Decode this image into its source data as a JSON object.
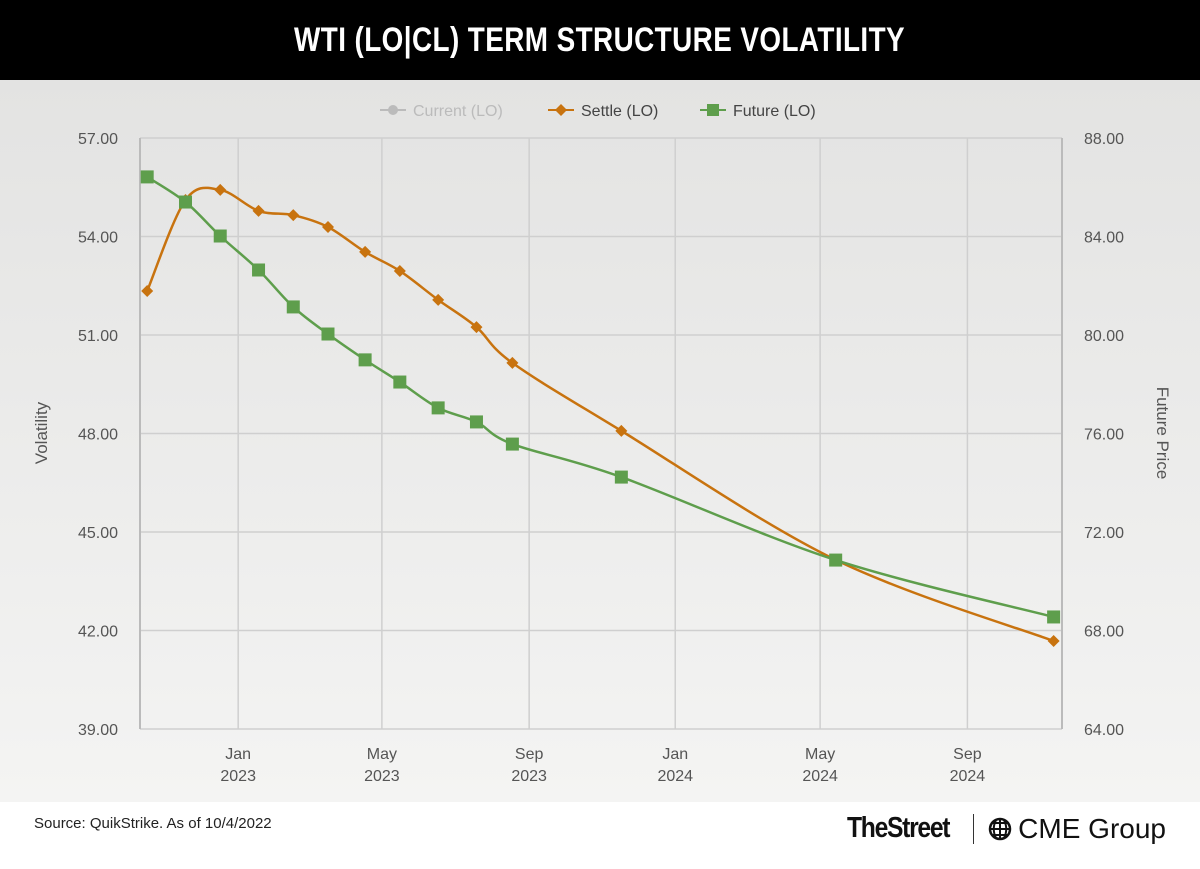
{
  "title": "WTI (LO|CL) TERM STRUCTURE VOLATILITY",
  "footer": {
    "source": "Source: QuikStrike. As of 10/4/2022",
    "logo_thestreet": "TheStreet",
    "logo_cme": "CME Group"
  },
  "chart_data": {
    "type": "line",
    "title": "WTI (LO|CL) TERM STRUCTURE VOLATILITY",
    "ylabel": "Volatility",
    "y2label": "Future Price",
    "ylim": [
      39,
      57
    ],
    "y2lim": [
      64,
      88
    ],
    "yticks": [
      "57.00",
      "54.00",
      "51.00",
      "48.00",
      "45.00",
      "42.00",
      "39.00"
    ],
    "y2ticks": [
      "88.00",
      "84.00",
      "80.00",
      "76.00",
      "72.00",
      "68.00",
      "64.00"
    ],
    "xticks": [
      {
        "date": "2023-01-01",
        "line1": "Jan",
        "line2": "2023"
      },
      {
        "date": "2023-05-01",
        "line1": "May",
        "line2": "2023"
      },
      {
        "date": "2023-09-01",
        "line1": "Sep",
        "line2": "2023"
      },
      {
        "date": "2024-01-01",
        "line1": "Jan",
        "line2": "2024"
      },
      {
        "date": "2024-05-01",
        "line1": "May",
        "line2": "2024"
      },
      {
        "date": "2024-09-01",
        "line1": "Sep",
        "line2": "2024"
      }
    ],
    "xlim": [
      "2022-10-11",
      "2024-11-19"
    ],
    "grid": true,
    "legend_position": "top",
    "legend": [
      {
        "name": "Current (LO)",
        "color": "#bbbbbb",
        "hidden": true,
        "marker": "circle"
      },
      {
        "name": "Settle (LO)",
        "color": "#c8730f",
        "marker": "diamond"
      },
      {
        "name": "Future (LO)",
        "color": "#5e9e4c",
        "marker": "square"
      }
    ],
    "series": [
      {
        "name": "Settle (LO)",
        "axis": "left",
        "color": "#c8730f",
        "marker": "diamond",
        "x": [
          "2022-10-17",
          "2022-11-18",
          "2022-12-17",
          "2023-01-18",
          "2023-02-16",
          "2023-03-17",
          "2023-04-17",
          "2023-05-16",
          "2023-06-17",
          "2023-07-19",
          "2023-08-18",
          "2023-11-17",
          "2024-05-14",
          "2024-11-12"
        ],
        "values": [
          52.34,
          55.11,
          55.42,
          54.78,
          54.65,
          54.29,
          53.53,
          52.95,
          52.07,
          51.24,
          50.15,
          48.08,
          44.15,
          41.68
        ]
      },
      {
        "name": "Future (LO)",
        "axis": "right",
        "color": "#5e9e4c",
        "marker": "square",
        "x": [
          "2022-10-17",
          "2022-11-18",
          "2022-12-17",
          "2023-01-18",
          "2023-02-16",
          "2023-03-17",
          "2023-04-17",
          "2023-05-16",
          "2023-06-17",
          "2023-07-19",
          "2023-08-18",
          "2023-11-17",
          "2024-05-14",
          "2024-11-12"
        ],
        "values": [
          86.42,
          85.4,
          84.02,
          82.64,
          81.14,
          80.04,
          78.99,
          78.09,
          77.04,
          76.47,
          75.57,
          74.23,
          70.86,
          68.55
        ]
      }
    ]
  }
}
